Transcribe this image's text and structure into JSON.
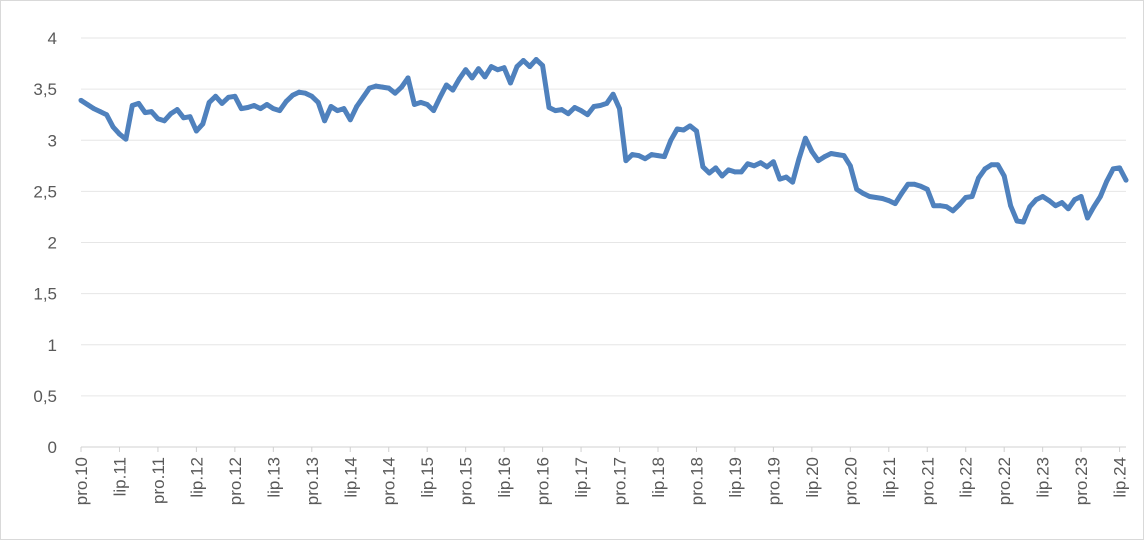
{
  "chart_data": {
    "type": "line",
    "title": "",
    "xlabel": "",
    "ylabel": "",
    "ylim": [
      0,
      4
    ],
    "y_ticks": [
      "0",
      "0,5",
      "1",
      "1,5",
      "2",
      "2,5",
      "3",
      "3,5",
      "4"
    ],
    "y_tick_values": [
      0,
      0.5,
      1,
      1.5,
      2,
      2.5,
      3,
      3.5,
      4
    ],
    "x_tick_labels": [
      "pro.10",
      "lip.11",
      "pro.11",
      "lip.12",
      "pro.12",
      "lip.13",
      "pro.13",
      "lip.14",
      "pro.14",
      "lip.15",
      "pro.15",
      "lip.16",
      "pro.16",
      "lip.17",
      "pro.17",
      "lip.18",
      "pro.18",
      "lip.19",
      "pro.19",
      "lip.20",
      "pro.20",
      "lip.21",
      "pro.21",
      "lip.22",
      "pro.22",
      "lip.23",
      "pro.23",
      "lip.24"
    ],
    "grid": true,
    "legend": "none",
    "line_color": "#4f81bd",
    "series": [
      {
        "values": [
          3.39,
          3.35,
          3.31,
          3.28,
          3.25,
          3.13,
          3.06,
          3.01,
          3.34,
          3.36,
          3.27,
          3.28,
          3.21,
          3.19,
          3.26,
          3.3,
          3.22,
          3.23,
          3.09,
          3.16,
          3.37,
          3.43,
          3.36,
          3.42,
          3.43,
          3.31,
          3.32,
          3.34,
          3.31,
          3.35,
          3.31,
          3.29,
          3.38,
          3.44,
          3.47,
          3.46,
          3.43,
          3.37,
          3.19,
          3.33,
          3.29,
          3.31,
          3.2,
          3.33,
          3.42,
          3.51,
          3.53,
          3.52,
          3.51,
          3.46,
          3.52,
          3.61,
          3.35,
          3.37,
          3.35,
          3.29,
          3.42,
          3.54,
          3.49,
          3.6,
          3.69,
          3.61,
          3.7,
          3.62,
          3.72,
          3.69,
          3.71,
          3.56,
          3.72,
          3.78,
          3.72,
          3.79,
          3.73,
          3.32,
          3.29,
          3.3,
          3.26,
          3.32,
          3.29,
          3.25,
          3.33,
          3.34,
          3.36,
          3.45,
          3.31,
          2.8,
          2.86,
          2.85,
          2.82,
          2.86,
          2.85,
          2.84,
          3.0,
          3.11,
          3.1,
          3.14,
          3.09,
          2.74,
          2.68,
          2.73,
          2.65,
          2.71,
          2.69,
          2.69,
          2.77,
          2.75,
          2.78,
          2.74,
          2.79,
          2.62,
          2.64,
          2.59,
          2.82,
          3.02,
          2.89,
          2.8,
          2.84,
          2.87,
          2.86,
          2.85,
          2.75,
          2.52,
          2.48,
          2.45,
          2.44,
          2.43,
          2.41,
          2.38,
          2.48,
          2.57,
          2.57,
          2.55,
          2.52,
          2.36,
          2.36,
          2.35,
          2.31,
          2.37,
          2.44,
          2.45,
          2.63,
          2.72,
          2.76,
          2.76,
          2.65,
          2.36,
          2.21,
          2.2,
          2.35,
          2.42,
          2.45,
          2.41,
          2.36,
          2.39,
          2.33,
          2.42,
          2.45,
          2.24,
          2.35,
          2.45,
          2.6,
          2.72,
          2.73,
          2.61
        ]
      }
    ]
  }
}
